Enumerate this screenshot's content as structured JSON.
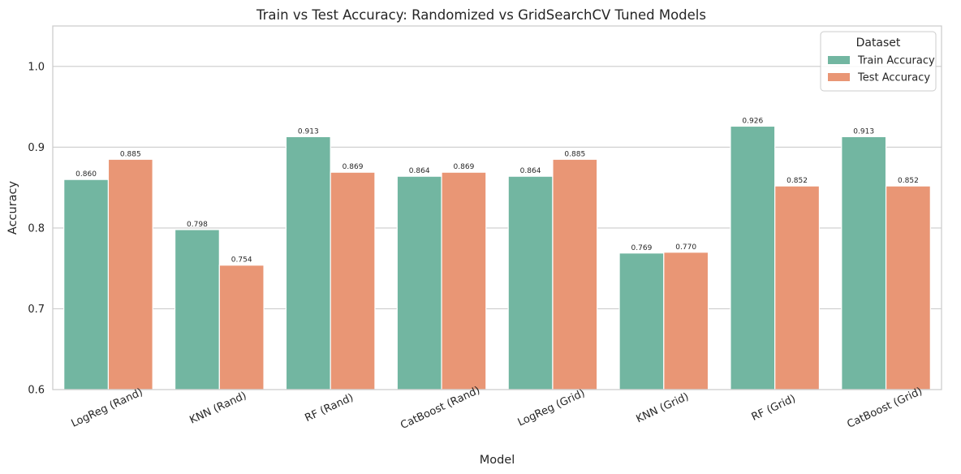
{
  "chart_data": {
    "type": "bar",
    "title": "Train vs Test Accuracy: Randomized vs GridSearchCV Tuned Models",
    "xlabel": "Model",
    "ylabel": "Accuracy",
    "ylim": [
      0.6,
      1.05
    ],
    "yticks": [
      "0.6",
      "0.7",
      "0.8",
      "0.9",
      "1.0"
    ],
    "grid": "horizontal",
    "legend": {
      "title": "Dataset",
      "placement": "top-right"
    },
    "categories": [
      "LogReg (Rand)",
      "KNN (Rand)",
      "RF (Rand)",
      "CatBoost (Rand)",
      "LogReg (Grid)",
      "KNN (Grid)",
      "RF (Grid)",
      "CatBoost (Grid)"
    ],
    "series": [
      {
        "name": "Train Accuracy",
        "color": "#72b6a1",
        "values": [
          0.86,
          0.798,
          0.913,
          0.864,
          0.864,
          0.769,
          0.926,
          0.913
        ],
        "labels": [
          "0.860",
          "0.798",
          "0.913",
          "0.864",
          "0.864",
          "0.769",
          "0.926",
          "0.913"
        ]
      },
      {
        "name": "Test Accuracy",
        "color": "#e99675",
        "values": [
          0.885,
          0.754,
          0.869,
          0.869,
          0.885,
          0.77,
          0.852,
          0.852
        ],
        "labels": [
          "0.885",
          "0.754",
          "0.869",
          "0.869",
          "0.885",
          "0.770",
          "0.852",
          "0.852"
        ]
      }
    ]
  }
}
